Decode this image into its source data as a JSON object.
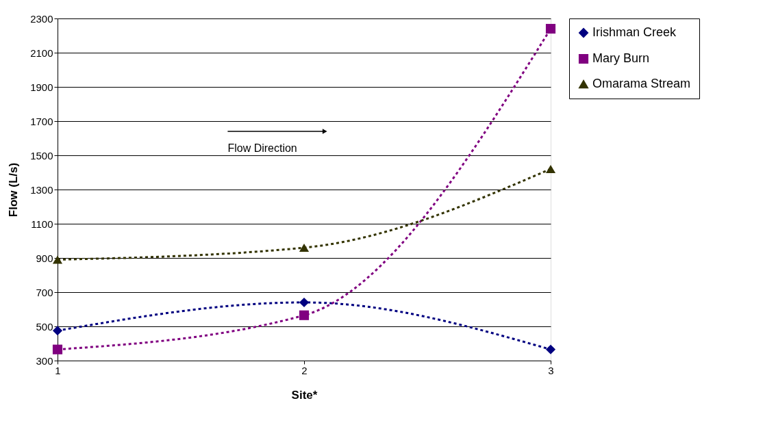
{
  "chart_data": {
    "type": "line",
    "xlabel": "Site*",
    "ylabel": "Flow (L/s)",
    "x": [
      1,
      2,
      3
    ],
    "xlim": [
      1,
      3
    ],
    "xticks": [
      1,
      2,
      3
    ],
    "ylim": [
      300,
      2300
    ],
    "yticks": [
      300,
      500,
      700,
      900,
      1100,
      1300,
      1500,
      1700,
      1900,
      2100,
      2300
    ],
    "grid": "y",
    "legend": "top right",
    "line_style": "dashed",
    "annotations": [
      "Flow Direction"
    ],
    "series": [
      {
        "name": "Irishman Creek",
        "color": "#000080",
        "marker": "diamond",
        "values": [
          475,
          640,
          365
        ]
      },
      {
        "name": "Mary Burn",
        "color": "#800080",
        "marker": "square",
        "values": [
          365,
          565,
          2240
        ]
      },
      {
        "name": "Omarama Stream",
        "color": "#333300",
        "marker": "triangle",
        "values": [
          890,
          960,
          1420
        ]
      }
    ]
  }
}
